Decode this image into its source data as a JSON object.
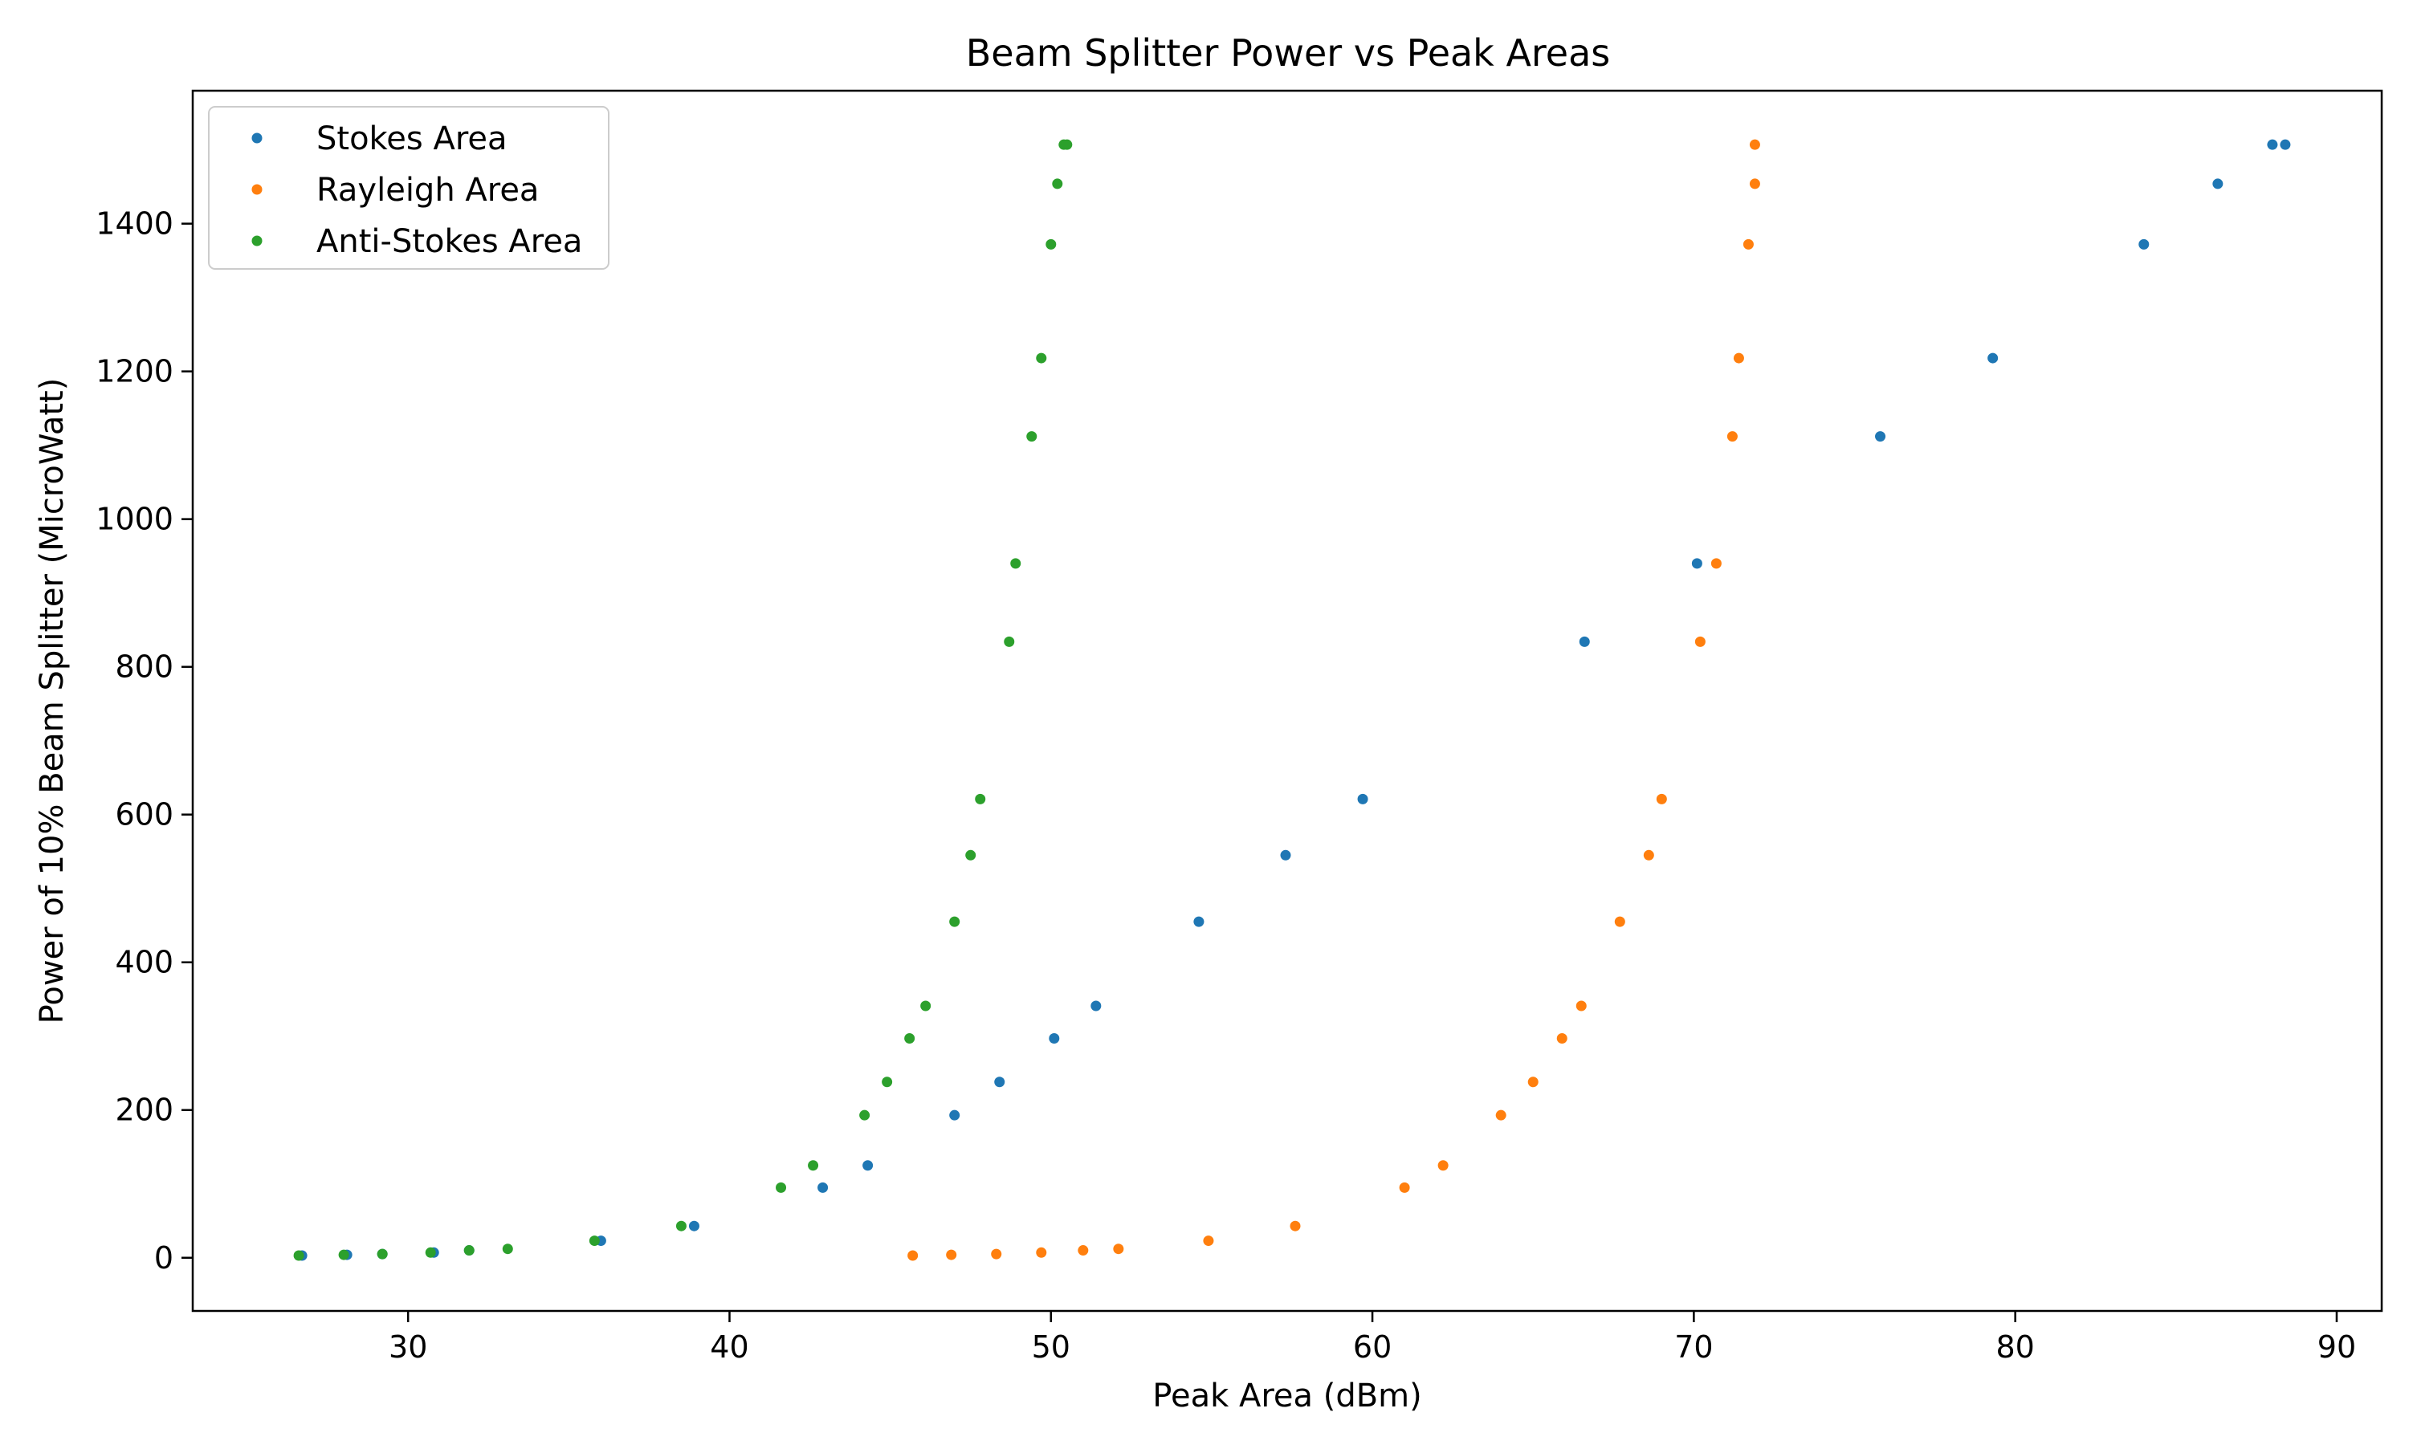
{
  "chart_data": {
    "type": "scatter",
    "title": "Beam Splitter Power vs Peak Areas",
    "xlabel": "Peak Area (dBm)",
    "ylabel": "Power of 10% Beam Splitter (MicroWatt)",
    "xlim": [
      23.3,
      91.4
    ],
    "ylim": [
      -72,
      1580
    ],
    "xticks": [
      30,
      40,
      50,
      60,
      70,
      80,
      90
    ],
    "yticks": [
      0,
      200,
      400,
      600,
      800,
      1000,
      1200,
      1400
    ],
    "grid": false,
    "legend_position": "top-left",
    "series": [
      {
        "name": "Stokes Area",
        "color": "#1f77b4",
        "points": [
          [
            26.7,
            3
          ],
          [
            28.1,
            4
          ],
          [
            29.2,
            5
          ],
          [
            30.8,
            7
          ],
          [
            31.9,
            10
          ],
          [
            36.0,
            23
          ],
          [
            38.9,
            43
          ],
          [
            42.9,
            95
          ],
          [
            44.3,
            125
          ],
          [
            47.0,
            193
          ],
          [
            48.4,
            238
          ],
          [
            50.1,
            297
          ],
          [
            51.4,
            341
          ],
          [
            54.6,
            455
          ],
          [
            57.3,
            545
          ],
          [
            59.7,
            621
          ],
          [
            66.6,
            834
          ],
          [
            70.1,
            940
          ],
          [
            75.8,
            1112
          ],
          [
            79.3,
            1218
          ],
          [
            84.0,
            1372
          ],
          [
            86.3,
            1454
          ],
          [
            88.0,
            1507
          ],
          [
            88.4,
            1507
          ]
        ]
      },
      {
        "name": "Rayleigh Area",
        "color": "#ff7f0e",
        "points": [
          [
            45.7,
            3
          ],
          [
            46.9,
            4
          ],
          [
            48.3,
            5
          ],
          [
            49.7,
            7
          ],
          [
            51.0,
            10
          ],
          [
            52.1,
            12
          ],
          [
            54.9,
            23
          ],
          [
            57.6,
            43
          ],
          [
            61.0,
            95
          ],
          [
            62.2,
            125
          ],
          [
            64.0,
            193
          ],
          [
            65.0,
            238
          ],
          [
            65.9,
            297
          ],
          [
            66.5,
            341
          ],
          [
            67.7,
            455
          ],
          [
            68.6,
            545
          ],
          [
            69.0,
            621
          ],
          [
            70.2,
            834
          ],
          [
            70.7,
            940
          ],
          [
            71.2,
            1112
          ],
          [
            71.4,
            1218
          ],
          [
            71.7,
            1372
          ],
          [
            71.9,
            1454
          ],
          [
            71.9,
            1507
          ]
        ]
      },
      {
        "name": "Anti-Stokes Area",
        "color": "#2ca02c",
        "points": [
          [
            26.6,
            3
          ],
          [
            28.0,
            4
          ],
          [
            29.2,
            5
          ],
          [
            30.7,
            7
          ],
          [
            31.9,
            10
          ],
          [
            33.1,
            12
          ],
          [
            35.8,
            23
          ],
          [
            38.5,
            43
          ],
          [
            41.6,
            95
          ],
          [
            42.6,
            125
          ],
          [
            44.2,
            193
          ],
          [
            44.9,
            238
          ],
          [
            45.6,
            297
          ],
          [
            46.1,
            341
          ],
          [
            47.0,
            455
          ],
          [
            47.5,
            545
          ],
          [
            47.8,
            621
          ],
          [
            48.7,
            834
          ],
          [
            48.9,
            940
          ],
          [
            49.4,
            1112
          ],
          [
            49.7,
            1218
          ],
          [
            50.0,
            1372
          ],
          [
            50.2,
            1454
          ],
          [
            50.4,
            1507
          ],
          [
            50.5,
            1507
          ]
        ]
      }
    ]
  }
}
